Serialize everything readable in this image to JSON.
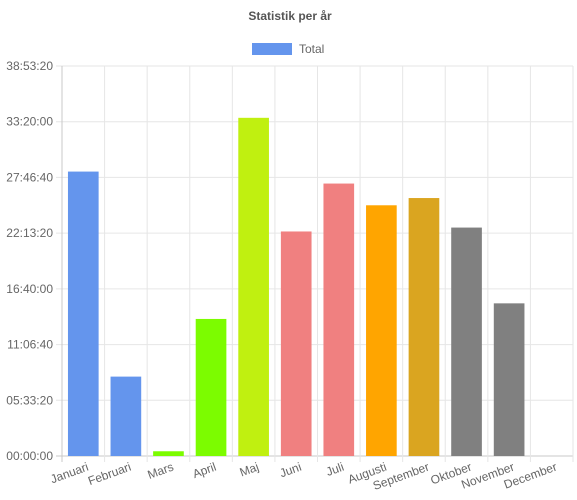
{
  "chart_data": {
    "type": "bar",
    "title": "Statistik per år",
    "legend": {
      "label": "Total",
      "color": "#6495ed",
      "position": "top"
    },
    "categories": [
      "Januari",
      "Februari",
      "Mars",
      "April",
      "Maj",
      "Juni",
      "Juli",
      "Augusti",
      "September",
      "Oktober",
      "November",
      "December"
    ],
    "values_seconds": [
      102100,
      28500,
      1700,
      49200,
      121400,
      80600,
      97800,
      90000,
      92600,
      82000,
      54800,
      0
    ],
    "colors": [
      "#6495ed",
      "#6495ed",
      "#7cfc00",
      "#7cfc00",
      "#c0f010",
      "#f08080",
      "#f08080",
      "#ffa500",
      "#daa520",
      "#808080",
      "#808080",
      "#808080"
    ],
    "y_ticks": [
      "00:00:00",
      "05:33:20",
      "11:06:40",
      "16:40:00",
      "22:13:20",
      "27:46:40",
      "33:20:00",
      "38:53:20"
    ],
    "y_tick_seconds": [
      0,
      20000,
      40000,
      60000,
      80000,
      100000,
      120000,
      140000
    ],
    "ylim_seconds": [
      0,
      140000
    ],
    "y_format": "HH:MM:SS",
    "grid": true
  }
}
